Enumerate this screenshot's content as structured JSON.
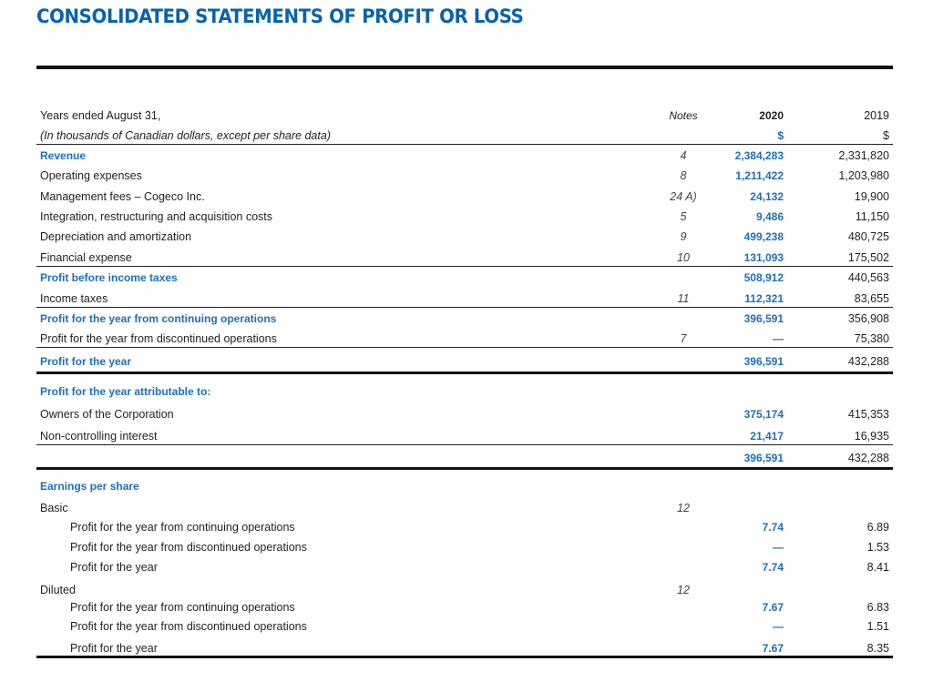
{
  "title": "CONSOLIDATED STATEMENTS OF PROFIT OR LOSS",
  "rows": [
    {
      "label": "Years ended August 31,",
      "note": "Notes",
      "v2020": "2020",
      "v2019": "2019",
      "style": "hdr"
    },
    {
      "label": "(In thousands of Canadian dollars, except per share data)",
      "note": "",
      "v2020": "$",
      "v2019": "$",
      "style": "it bl"
    },
    {
      "label": "Revenue",
      "note": "4",
      "v2020": "2,384,283",
      "v2019": "2,331,820",
      "style": "hl"
    },
    {
      "label": "Operating expenses",
      "note": "8",
      "v2020": "1,211,422",
      "v2019": "1,203,980",
      "style": ""
    },
    {
      "label": "Management fees – Cogeco Inc.",
      "note": "24 A)",
      "v2020": "24,132",
      "v2019": "19,900",
      "style": ""
    },
    {
      "label": "Integration, restructuring and acquisition costs",
      "note": "5",
      "v2020": "9,486",
      "v2019": "11,150",
      "style": ""
    },
    {
      "label": "Depreciation and amortization",
      "note": "9",
      "v2020": "499,238",
      "v2019": "480,725",
      "style": ""
    },
    {
      "label": "Financial expense",
      "note": "10",
      "v2020": "131,093",
      "v2019": "175,502",
      "style": "bl"
    },
    {
      "label": "Profit before income taxes",
      "note": "",
      "v2020": "508,912",
      "v2019": "440,563",
      "style": "hl"
    },
    {
      "label": "Income taxes",
      "note": "11",
      "v2020": "112,321",
      "v2019": "83,655",
      "style": "bl"
    },
    {
      "label": "Profit for the year from continuing operations",
      "note": "",
      "v2020": "396,591",
      "v2019": "356,908",
      "style": "hl"
    },
    {
      "label": "Profit for the year from discontinued operations",
      "note": "7",
      "v2020": "—",
      "v2019": "75,380",
      "style": "bl"
    },
    {
      "label": "Profit for the year",
      "note": "",
      "v2020": "396,591",
      "v2019": "432,288",
      "style": "hl"
    },
    {
      "label": "Profit for the year attributable to:",
      "note": "",
      "v2020": "",
      "v2019": "",
      "style": "hl"
    },
    {
      "label": "Owners of the Corporation",
      "note": "",
      "v2020": "375,174",
      "v2019": "415,353",
      "style": ""
    },
    {
      "label": "Non-controlling interest",
      "note": "",
      "v2020": "21,417",
      "v2019": "16,935",
      "style": "bl"
    },
    {
      "label": "",
      "note": "",
      "v2020": "396,591",
      "v2019": "432,288",
      "style": ""
    },
    {
      "label": "Earnings per share",
      "note": "",
      "v2020": "",
      "v2019": "",
      "style": "hl"
    },
    {
      "label": "Basic",
      "note": "12",
      "v2020": "",
      "v2019": "",
      "style": ""
    },
    {
      "label": "Profit for the year from continuing operations",
      "note": "",
      "v2020": "7.74",
      "v2019": "6.89",
      "style": "ind"
    },
    {
      "label": "Profit for the year from discontinued operations",
      "note": "",
      "v2020": "—",
      "v2019": "1.53",
      "style": "ind"
    },
    {
      "label": "Profit for the year",
      "note": "",
      "v2020": "7.74",
      "v2019": "8.41",
      "style": "ind"
    },
    {
      "label": "Diluted",
      "note": "12",
      "v2020": "",
      "v2019": "",
      "style": ""
    },
    {
      "label": "Profit for the year from continuing operations",
      "note": "",
      "v2020": "7.67",
      "v2019": "6.83",
      "style": "ind"
    },
    {
      "label": "Profit for the year from discontinued operations",
      "note": "",
      "v2020": "—",
      "v2019": "1.51",
      "style": "ind"
    },
    {
      "label": "Profit for the year",
      "note": "",
      "v2020": "7.67",
      "v2019": "8.35",
      "style": "ind"
    }
  ]
}
